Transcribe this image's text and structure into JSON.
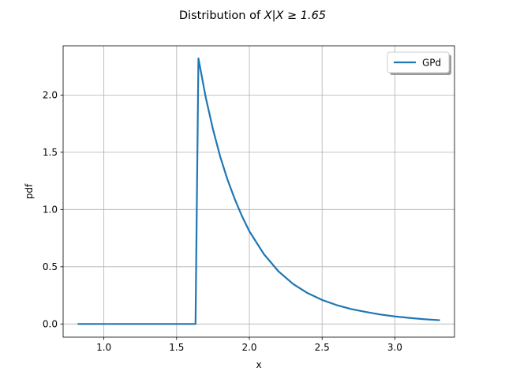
{
  "chart_data": {
    "type": "line",
    "title_main": "Distribution of ",
    "title_math": "X|X ≥ 1.65",
    "xlabel": "x",
    "ylabel": "pdf",
    "xlim": [
      0.72,
      3.41
    ],
    "ylim": [
      -0.115,
      2.43
    ],
    "xticks": [
      1.0,
      1.5,
      2.0,
      2.5,
      3.0
    ],
    "xtick_labels": [
      "1.0",
      "1.5",
      "2.0",
      "2.5",
      "3.0"
    ],
    "yticks": [
      0.0,
      0.5,
      1.0,
      1.5,
      2.0
    ],
    "ytick_labels": [
      "0.0",
      "0.5",
      "1.0",
      "1.5",
      "2.0"
    ],
    "grid": true,
    "legend_position": "top-right",
    "color": "#1f77b4",
    "series": [
      {
        "name": "GPd",
        "x": [
          0.82,
          1.0,
          1.2,
          1.4,
          1.63,
          1.65,
          1.7,
          1.75,
          1.8,
          1.85,
          1.9,
          1.95,
          2.0,
          2.1,
          2.2,
          2.3,
          2.4,
          2.5,
          2.6,
          2.7,
          2.8,
          2.9,
          3.0,
          3.1,
          3.2,
          3.31
        ],
        "y": [
          0.0,
          0.0,
          0.0,
          0.0,
          0.0,
          2.32,
          1.98,
          1.7,
          1.46,
          1.26,
          1.09,
          0.94,
          0.81,
          0.61,
          0.46,
          0.35,
          0.27,
          0.21,
          0.165,
          0.13,
          0.105,
          0.083,
          0.066,
          0.053,
          0.042,
          0.033
        ]
      }
    ]
  }
}
